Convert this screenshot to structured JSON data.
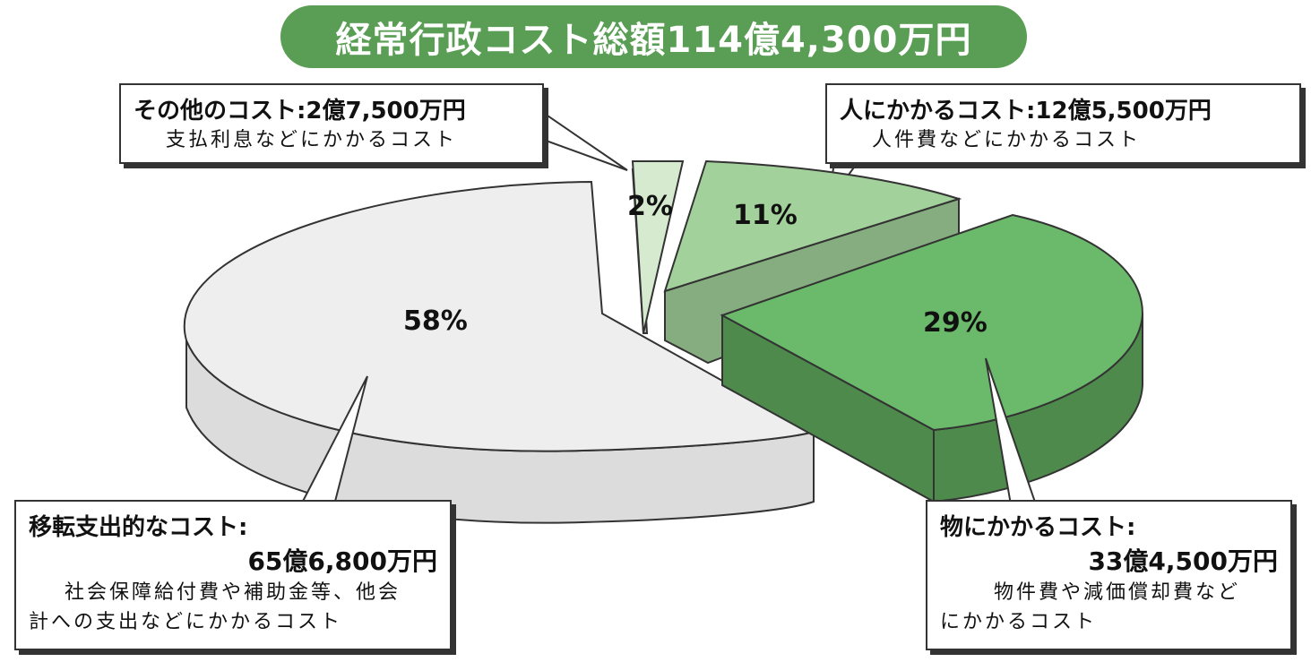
{
  "title": "経常行政コスト総額114億4,300万円",
  "chart_data": {
    "type": "pie",
    "slices": [
      {
        "label": "移転支出的なコスト",
        "percent": 58,
        "percent_label": "58%",
        "amount": "65億6,800万円",
        "color": "#eeeeee",
        "side_color": "#dcdcdc"
      },
      {
        "label": "その他のコスト",
        "percent": 2,
        "percent_label": "2%",
        "amount": "2億7,500万円",
        "color": "#d6ead0",
        "side_color": "#b7d3af"
      },
      {
        "label": "人にかかるコスト",
        "percent": 11,
        "percent_label": "11%",
        "amount": "12億5,500万円",
        "color": "#a3d19b",
        "side_color": "#86ad7f"
      },
      {
        "label": "物にかかるコスト",
        "percent": 29,
        "percent_label": "29%",
        "amount": "33億4,500万円",
        "color": "#6bb96a",
        "side_color": "#4d8a4c"
      }
    ]
  },
  "callouts": {
    "other": {
      "head": "その他のコスト:2億7,500万円",
      "desc": "支払利息などにかかるコスト"
    },
    "human": {
      "head": "人にかかるコスト:12億5,500万円",
      "desc": "人件費などにかかるコスト"
    },
    "transfer": {
      "head": "移転支出的なコスト:",
      "amount": "65億6,800万円",
      "desc1": "社会保障給付費や補助金等、他会",
      "desc2": "計への支出などにかかるコスト"
    },
    "material": {
      "head": "物にかかるコスト:",
      "amount": "33億4,500万円",
      "desc1": "物件費や減価償却費など",
      "desc2": "にかかるコスト"
    }
  },
  "colors": {
    "title_bg": "#5a9e55",
    "outline": "#333333"
  }
}
